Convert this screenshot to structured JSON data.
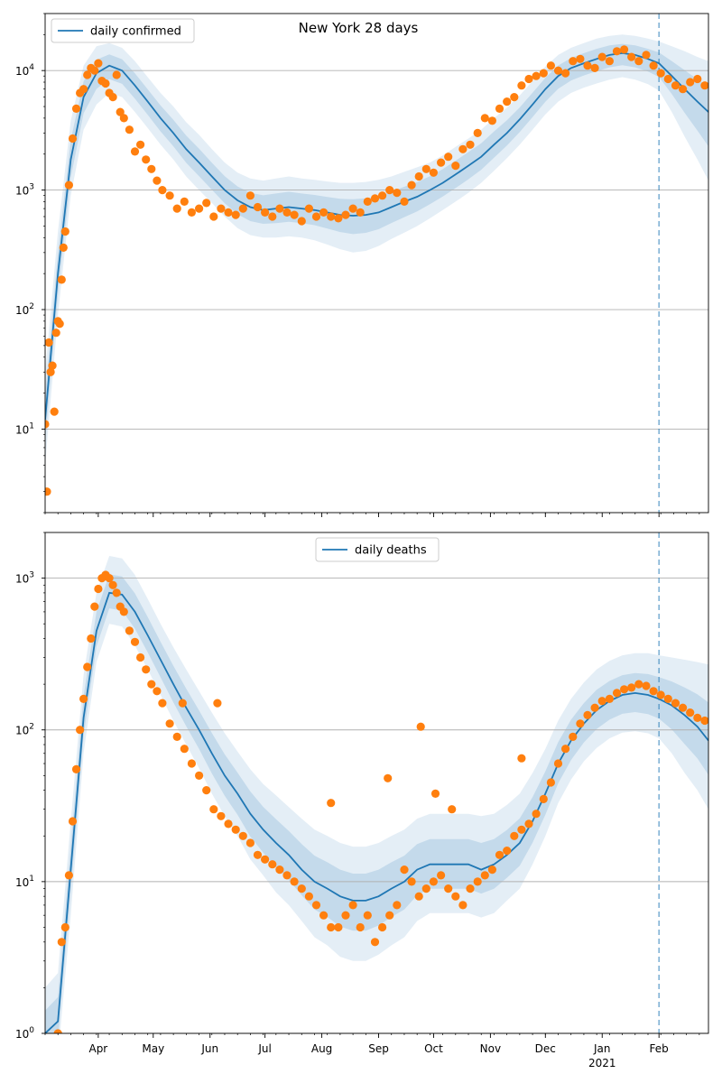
{
  "figure_title": "New York 28 days",
  "colors": {
    "line": "#1f77b4",
    "points": "#ff7f0e",
    "band": "#1f77b4",
    "grid": "#b0b0b0",
    "vline": "#1f77b4"
  },
  "x_axis": {
    "ticks": [
      {
        "date": "2020-04-01",
        "label": "Apr",
        "sub": ""
      },
      {
        "date": "2020-05-01",
        "label": "May",
        "sub": ""
      },
      {
        "date": "2020-06-01",
        "label": "Jun",
        "sub": ""
      },
      {
        "date": "2020-07-01",
        "label": "Jul",
        "sub": ""
      },
      {
        "date": "2020-08-01",
        "label": "Aug",
        "sub": ""
      },
      {
        "date": "2020-09-01",
        "label": "Sep",
        "sub": ""
      },
      {
        "date": "2020-10-01",
        "label": "Oct",
        "sub": ""
      },
      {
        "date": "2020-11-01",
        "label": "Nov",
        "sub": ""
      },
      {
        "date": "2020-12-01",
        "label": "Dec",
        "sub": ""
      },
      {
        "date": "2021-01-01",
        "label": "Jan",
        "sub": "2021"
      },
      {
        "date": "2021-02-01",
        "label": "Feb",
        "sub": ""
      }
    ],
    "range": [
      "2020-03-03",
      "2021-02-28"
    ]
  },
  "forecast_start": "2021-02-01",
  "chart_data": [
    {
      "type": "line",
      "scale": "log",
      "ylim": [
        2,
        30000
      ],
      "legend": {
        "label": "daily confirmed",
        "position": "upper-left"
      },
      "y_ticks": [
        {
          "value": 10,
          "base": "10",
          "exp": "1"
        },
        {
          "value": 100,
          "base": "10",
          "exp": "2"
        },
        {
          "value": 1000,
          "base": "10",
          "exp": "3"
        },
        {
          "value": 10000,
          "base": "10",
          "exp": "4"
        }
      ],
      "grid": true,
      "fit": {
        "x": [
          "2020-03-03",
          "2020-03-10",
          "2020-03-17",
          "2020-03-24",
          "2020-03-31",
          "2020-04-07",
          "2020-04-14",
          "2020-04-21",
          "2020-04-28",
          "2020-05-05",
          "2020-05-12",
          "2020-05-19",
          "2020-05-26",
          "2020-06-02",
          "2020-06-09",
          "2020-06-16",
          "2020-06-23",
          "2020-06-30",
          "2020-07-07",
          "2020-07-14",
          "2020-07-21",
          "2020-07-28",
          "2020-08-04",
          "2020-08-11",
          "2020-08-18",
          "2020-08-25",
          "2020-09-01",
          "2020-09-08",
          "2020-09-15",
          "2020-09-22",
          "2020-09-29",
          "2020-10-06",
          "2020-10-13",
          "2020-10-20",
          "2020-10-27",
          "2020-11-03",
          "2020-11-10",
          "2020-11-17",
          "2020-11-24",
          "2020-12-01",
          "2020-12-08",
          "2020-12-15",
          "2020-12-22",
          "2020-12-29",
          "2021-01-05",
          "2021-01-12",
          "2021-01-19",
          "2021-01-26",
          "2021-02-01",
          "2021-02-08",
          "2021-02-15",
          "2021-02-22",
          "2021-02-28"
        ],
        "y": [
          12,
          200,
          1800,
          6000,
          9500,
          11000,
          10000,
          7500,
          5500,
          4000,
          3000,
          2200,
          1700,
          1300,
          1000,
          820,
          720,
          680,
          700,
          720,
          700,
          680,
          650,
          620,
          610,
          620,
          650,
          720,
          800,
          880,
          1000,
          1150,
          1350,
          1600,
          1900,
          2400,
          3000,
          3900,
          5200,
          7000,
          9000,
          10500,
          11500,
          12500,
          13500,
          14000,
          13500,
          12500,
          11500,
          9000,
          7000,
          5500,
          4500
        ],
        "lower": [
          5,
          90,
          900,
          3200,
          5200,
          6500,
          6000,
          4500,
          3300,
          2400,
          1800,
          1300,
          1000,
          780,
          600,
          480,
          420,
          400,
          400,
          410,
          400,
          380,
          350,
          320,
          300,
          310,
          340,
          390,
          440,
          500,
          580,
          680,
          800,
          950,
          1150,
          1450,
          1850,
          2400,
          3200,
          4300,
          5500,
          6500,
          7200,
          7800,
          8400,
          8800,
          8400,
          7700,
          6800,
          4500,
          2800,
          1800,
          1200
        ],
        "upper": [
          30,
          450,
          3800,
          11000,
          16000,
          17000,
          15500,
          12000,
          8800,
          6500,
          5000,
          3700,
          2900,
          2200,
          1700,
          1400,
          1250,
          1200,
          1250,
          1300,
          1250,
          1220,
          1180,
          1150,
          1150,
          1170,
          1220,
          1300,
          1420,
          1550,
          1700,
          1950,
          2300,
          2700,
          3200,
          4000,
          4900,
          6200,
          8200,
          10800,
          13500,
          15500,
          17000,
          18500,
          19500,
          20000,
          19500,
          18500,
          17500,
          16000,
          14500,
          13000,
          12000
        ]
      },
      "observed": {
        "x": [
          "2020-03-03",
          "2020-03-04",
          "2020-03-05",
          "2020-03-06",
          "2020-03-07",
          "2020-03-08",
          "2020-03-09",
          "2020-03-10",
          "2020-03-11",
          "2020-03-12",
          "2020-03-13",
          "2020-03-14",
          "2020-03-16",
          "2020-03-18",
          "2020-03-20",
          "2020-03-22",
          "2020-03-24",
          "2020-03-26",
          "2020-03-28",
          "2020-03-30",
          "2020-04-01",
          "2020-04-03",
          "2020-04-05",
          "2020-04-07",
          "2020-04-09",
          "2020-04-11",
          "2020-04-13",
          "2020-04-15",
          "2020-04-18",
          "2020-04-21",
          "2020-04-24",
          "2020-04-27",
          "2020-04-30",
          "2020-05-03",
          "2020-05-06",
          "2020-05-10",
          "2020-05-14",
          "2020-05-18",
          "2020-05-22",
          "2020-05-26",
          "2020-05-30",
          "2020-06-03",
          "2020-06-07",
          "2020-06-11",
          "2020-06-15",
          "2020-06-19",
          "2020-06-23",
          "2020-06-27",
          "2020-07-01",
          "2020-07-05",
          "2020-07-09",
          "2020-07-13",
          "2020-07-17",
          "2020-07-21",
          "2020-07-25",
          "2020-07-29",
          "2020-08-02",
          "2020-08-06",
          "2020-08-10",
          "2020-08-14",
          "2020-08-18",
          "2020-08-22",
          "2020-08-26",
          "2020-08-30",
          "2020-09-03",
          "2020-09-07",
          "2020-09-11",
          "2020-09-15",
          "2020-09-19",
          "2020-09-23",
          "2020-09-27",
          "2020-10-01",
          "2020-10-05",
          "2020-10-09",
          "2020-10-13",
          "2020-10-17",
          "2020-10-21",
          "2020-10-25",
          "2020-10-29",
          "2020-11-02",
          "2020-11-06",
          "2020-11-10",
          "2020-11-14",
          "2020-11-18",
          "2020-11-22",
          "2020-11-26",
          "2020-11-30",
          "2020-12-04",
          "2020-12-08",
          "2020-12-12",
          "2020-12-16",
          "2020-12-20",
          "2020-12-24",
          "2020-12-28",
          "2021-01-01",
          "2021-01-05",
          "2021-01-09",
          "2021-01-13",
          "2021-01-17",
          "2021-01-21",
          "2021-01-25",
          "2021-01-29",
          "2021-02-02",
          "2021-02-06",
          "2021-02-10",
          "2021-02-14",
          "2021-02-18",
          "2021-02-22",
          "2021-02-26"
        ],
        "y": [
          11,
          3,
          53,
          30,
          34,
          14,
          64,
          80,
          76,
          178,
          330,
          450,
          1100,
          2700,
          4800,
          6500,
          7000,
          9200,
          10500,
          10000,
          11500,
          8200,
          7800,
          6500,
          6000,
          9200,
          4500,
          4000,
          3200,
          2100,
          2400,
          1800,
          1500,
          1200,
          1000,
          900,
          700,
          800,
          650,
          700,
          780,
          600,
          700,
          650,
          620,
          700,
          900,
          720,
          650,
          600,
          700,
          650,
          620,
          550,
          700,
          600,
          650,
          600,
          580,
          620,
          700,
          650,
          800,
          850,
          900,
          1000,
          950,
          800,
          1100,
          1300,
          1500,
          1400,
          1700,
          1900,
          1600,
          2200,
          2400,
          3000,
          4000,
          3800,
          4800,
          5500,
          6000,
          7500,
          8500,
          9000,
          9500,
          11000,
          10000,
          9500,
          12000,
          12500,
          11000,
          10500,
          13000,
          12000,
          14500,
          15000,
          13000,
          12000,
          13500,
          11000,
          9500,
          8500,
          7500,
          7000,
          8000,
          8500,
          7500
        ]
      }
    },
    {
      "type": "line",
      "scale": "log",
      "ylim": [
        1,
        2000
      ],
      "legend": {
        "label": "daily deaths",
        "position": "upper-center"
      },
      "y_ticks": [
        {
          "value": 1,
          "base": "10",
          "exp": "0"
        },
        {
          "value": 10,
          "base": "10",
          "exp": "1"
        },
        {
          "value": 100,
          "base": "10",
          "exp": "2"
        },
        {
          "value": 1000,
          "base": "10",
          "exp": "3"
        }
      ],
      "grid": true,
      "fit": {
        "x": [
          "2020-03-03",
          "2020-03-10",
          "2020-03-17",
          "2020-03-24",
          "2020-03-31",
          "2020-04-07",
          "2020-04-14",
          "2020-04-21",
          "2020-04-28",
          "2020-05-05",
          "2020-05-12",
          "2020-05-19",
          "2020-05-26",
          "2020-06-02",
          "2020-06-09",
          "2020-06-16",
          "2020-06-23",
          "2020-06-30",
          "2020-07-07",
          "2020-07-14",
          "2020-07-21",
          "2020-07-28",
          "2020-08-04",
          "2020-08-11",
          "2020-08-18",
          "2020-08-25",
          "2020-09-01",
          "2020-09-08",
          "2020-09-15",
          "2020-09-22",
          "2020-09-29",
          "2020-10-06",
          "2020-10-13",
          "2020-10-20",
          "2020-10-27",
          "2020-11-03",
          "2020-11-10",
          "2020-11-17",
          "2020-11-24",
          "2020-12-01",
          "2020-12-08",
          "2020-12-15",
          "2020-12-22",
          "2020-12-29",
          "2021-01-05",
          "2021-01-12",
          "2021-01-19",
          "2021-01-26",
          "2021-02-01",
          "2021-02-08",
          "2021-02-15",
          "2021-02-22",
          "2021-02-28"
        ],
        "y": [
          1,
          1.2,
          12,
          120,
          450,
          800,
          780,
          600,
          420,
          290,
          200,
          140,
          100,
          70,
          50,
          38,
          28,
          22,
          18,
          15,
          12,
          10,
          9,
          8,
          7.5,
          7.5,
          8,
          9,
          10,
          12,
          13,
          13,
          13,
          13,
          12,
          13,
          15,
          18,
          25,
          38,
          60,
          85,
          110,
          135,
          155,
          170,
          175,
          170,
          160,
          145,
          125,
          105,
          85
        ],
        "lower": [
          0.5,
          0.7,
          6,
          70,
          280,
          500,
          480,
          360,
          250,
          170,
          115,
          80,
          56,
          38,
          27,
          20,
          14,
          11,
          8.5,
          7,
          5.5,
          4.3,
          3.8,
          3.2,
          3,
          3,
          3.3,
          3.8,
          4.3,
          5.5,
          6.2,
          6.2,
          6.2,
          6.2,
          5.8,
          6.2,
          7.5,
          9,
          13,
          20,
          33,
          47,
          62,
          76,
          88,
          96,
          98,
          95,
          88,
          70,
          52,
          40,
          30
        ],
        "upper": [
          2,
          2.5,
          25,
          230,
          800,
          1400,
          1350,
          1050,
          730,
          500,
          350,
          250,
          180,
          130,
          95,
          72,
          55,
          44,
          37,
          31,
          26,
          22,
          20,
          18,
          17,
          17,
          18,
          20,
          22,
          26,
          28,
          28,
          28,
          28,
          27,
          28,
          32,
          38,
          52,
          75,
          115,
          160,
          205,
          250,
          285,
          310,
          320,
          320,
          310,
          300,
          290,
          280,
          270
        ]
      },
      "observed": {
        "x": [
          "2020-03-10",
          "2020-03-12",
          "2020-03-14",
          "2020-03-16",
          "2020-03-18",
          "2020-03-20",
          "2020-03-22",
          "2020-03-24",
          "2020-03-26",
          "2020-03-28",
          "2020-03-30",
          "2020-04-01",
          "2020-04-03",
          "2020-04-05",
          "2020-04-07",
          "2020-04-09",
          "2020-04-11",
          "2020-04-13",
          "2020-04-15",
          "2020-04-18",
          "2020-04-21",
          "2020-04-24",
          "2020-04-27",
          "2020-04-30",
          "2020-05-03",
          "2020-05-06",
          "2020-05-10",
          "2020-05-14",
          "2020-05-18",
          "2020-05-22",
          "2020-05-26",
          "2020-05-30",
          "2020-06-03",
          "2020-06-07",
          "2020-06-11",
          "2020-06-15",
          "2020-06-19",
          "2020-06-23",
          "2020-06-27",
          "2020-07-01",
          "2020-07-05",
          "2020-07-09",
          "2020-07-13",
          "2020-07-17",
          "2020-07-21",
          "2020-07-25",
          "2020-07-29",
          "2020-08-02",
          "2020-08-06",
          "2020-08-10",
          "2020-08-14",
          "2020-08-18",
          "2020-08-22",
          "2020-08-26",
          "2020-08-30",
          "2020-09-03",
          "2020-09-07",
          "2020-09-11",
          "2020-09-15",
          "2020-09-19",
          "2020-09-23",
          "2020-09-27",
          "2020-10-01",
          "2020-10-05",
          "2020-10-09",
          "2020-10-13",
          "2020-10-17",
          "2020-10-21",
          "2020-10-25",
          "2020-10-29",
          "2020-11-02",
          "2020-11-06",
          "2020-11-10",
          "2020-11-14",
          "2020-11-18",
          "2020-11-22",
          "2020-11-26",
          "2020-11-30",
          "2020-12-04",
          "2020-12-08",
          "2020-12-12",
          "2020-12-16",
          "2020-12-20",
          "2020-12-24",
          "2020-12-28",
          "2021-01-01",
          "2021-01-05",
          "2021-01-09",
          "2021-01-13",
          "2021-01-17",
          "2021-01-21",
          "2021-01-25",
          "2021-01-29",
          "2021-02-02",
          "2021-02-06",
          "2021-02-10",
          "2021-02-14",
          "2021-02-18",
          "2021-02-22",
          "2021-02-26",
          "2020-05-17",
          "2020-06-05",
          "2020-08-06",
          "2020-09-06",
          "2020-09-24",
          "2020-10-02",
          "2020-10-11",
          "2020-11-18"
        ],
        "y": [
          1,
          4,
          5,
          11,
          25,
          55,
          100,
          160,
          260,
          400,
          650,
          850,
          1000,
          1050,
          1000,
          900,
          800,
          650,
          600,
          450,
          380,
          300,
          250,
          200,
          180,
          150,
          110,
          90,
          75,
          60,
          50,
          40,
          30,
          27,
          24,
          22,
          20,
          18,
          15,
          14,
          13,
          12,
          11,
          10,
          9,
          8,
          7,
          6,
          5,
          5,
          6,
          7,
          5,
          6,
          4,
          5,
          6,
          7,
          12,
          10,
          8,
          9,
          10,
          11,
          9,
          8,
          7,
          9,
          10,
          11,
          12,
          15,
          16,
          20,
          22,
          24,
          28,
          35,
          45,
          60,
          75,
          90,
          110,
          125,
          140,
          155,
          160,
          175,
          185,
          190,
          200,
          195,
          180,
          170,
          160,
          150,
          140,
          130,
          120,
          115,
          150,
          150,
          33,
          48,
          105,
          38,
          30,
          65
        ]
      }
    }
  ]
}
